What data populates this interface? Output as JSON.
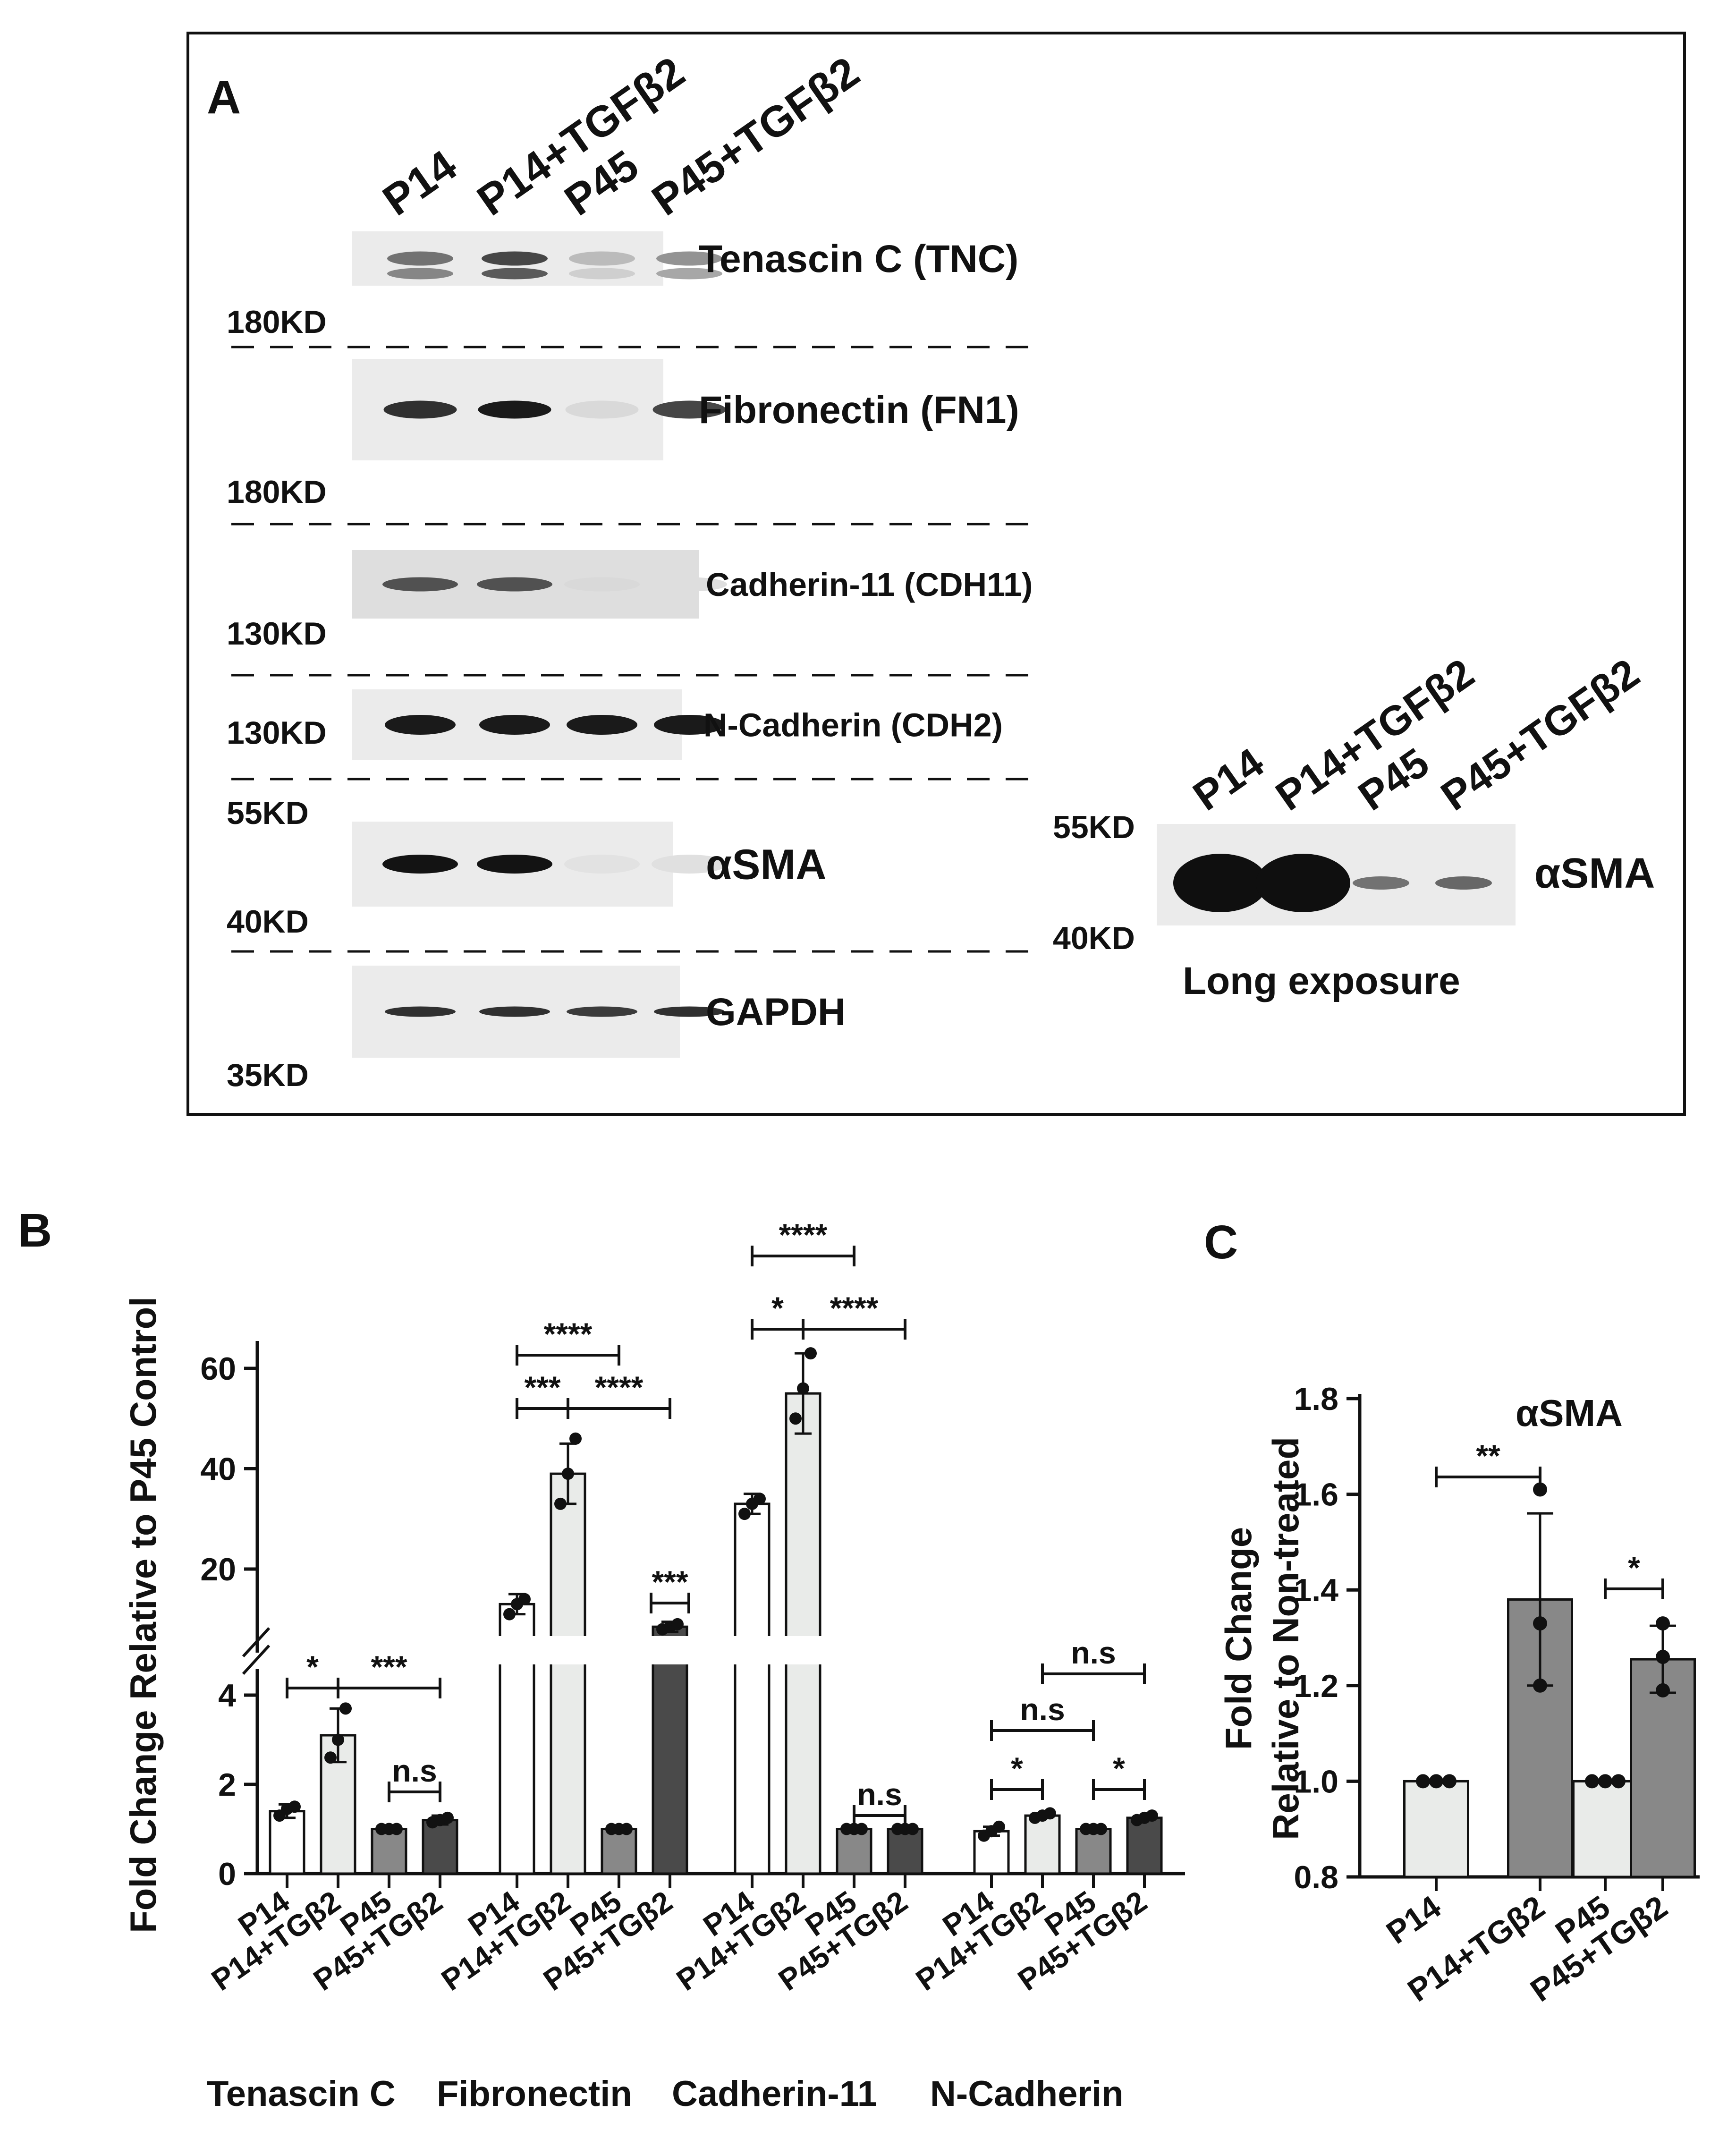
{
  "panel_a": {
    "panel_label": "A",
    "lane_labels": [
      "P14",
      "P14+TGFβ2",
      "P45",
      "P45+TGFβ2"
    ],
    "blots": [
      {
        "label": "Tenascin C (TNC)",
        "intensities": [
          0.55,
          0.75,
          0.22,
          0.4
        ]
      },
      {
        "label": "Fibronectin (FN1)",
        "intensities": [
          0.85,
          0.95,
          0.08,
          0.75
        ]
      },
      {
        "label": "Cadherin-11 (CDH11)",
        "intensities": [
          0.7,
          0.7,
          0.08,
          0.06
        ]
      },
      {
        "label": "N-Cadherin (CDH2)",
        "intensities": [
          0.95,
          0.95,
          0.95,
          0.95
        ]
      },
      {
        "label": "αSMA",
        "intensities": [
          0.98,
          0.98,
          0.04,
          0.05
        ]
      },
      {
        "label": "GAPDH",
        "intensities": [
          0.85,
          0.85,
          0.8,
          0.85
        ]
      }
    ],
    "mw_markers": [
      "180KD",
      "180KD",
      "130KD",
      "130KD",
      "55KD",
      "40KD",
      "35KD"
    ],
    "long_exposure": {
      "lane_labels": [
        "P14",
        "P14+TGFβ2",
        "P45",
        "P45+TGFβ2"
      ],
      "marker_top": "55KD",
      "marker_bottom": "40KD",
      "label": "αSMA",
      "caption": "Long exposure",
      "intensities": [
        1.0,
        1.0,
        0.55,
        0.6
      ]
    }
  },
  "chart_data": [
    {
      "panel_label": "B",
      "type": "bar",
      "ylabel": "Fold Change Relative to P45 Control",
      "y_axis": {
        "broken": true,
        "lower_range": [
          0,
          4.9
        ],
        "upper_range": [
          7,
          64
        ],
        "ticks": [
          0,
          2,
          4,
          20,
          40,
          60
        ]
      },
      "category_labels": [
        "P14",
        "P14+TGβ2",
        "P45",
        "P45+TGβ2"
      ],
      "bar_colors": [
        "#ffffff",
        "#e9ebe9",
        "#888888",
        "#4a4a4a"
      ],
      "groups": [
        {
          "name": "Tenascin C",
          "means": [
            1.4,
            3.1,
            1.0,
            1.2
          ],
          "errors": [
            0.15,
            0.6,
            0.0,
            0.1
          ],
          "points": [
            [
              1.3,
              1.45,
              1.5
            ],
            [
              2.6,
              3.0,
              3.7
            ],
            [
              1.0,
              1.0,
              1.0
            ],
            [
              1.15,
              1.2,
              1.25
            ]
          ],
          "comparisons": [
            {
              "from": 0,
              "to": 1,
              "label": "*"
            },
            {
              "from": 1,
              "to": 3,
              "label": "***"
            },
            {
              "from": 2,
              "to": 3,
              "label": "n.s"
            }
          ]
        },
        {
          "name": "Fibronectin",
          "means": [
            13,
            39,
            1.0,
            8.5
          ],
          "errors": [
            2,
            6,
            0.0,
            1
          ],
          "points": [
            [
              11,
              13,
              14
            ],
            [
              33,
              39,
              46
            ],
            [
              1.0,
              1.0,
              1.0
            ],
            [
              8,
              8.5,
              9
            ]
          ],
          "comparisons": [
            {
              "from": 0,
              "to": 1,
              "label": "***"
            },
            {
              "from": 0,
              "to": 2,
              "label": "****"
            },
            {
              "from": 1,
              "to": 3,
              "label": "****"
            },
            {
              "from": 3,
              "to": 3,
              "label": "***"
            }
          ]
        },
        {
          "name": "Cadherin-11",
          "means": [
            33,
            55,
            1.0,
            1.0
          ],
          "errors": [
            2,
            8,
            0.0,
            0.0
          ],
          "points": [
            [
              31,
              33,
              34
            ],
            [
              50,
              56,
              63
            ],
            [
              1.0,
              1.0,
              1.0
            ],
            [
              1.0,
              1.0,
              1.0
            ]
          ],
          "comparisons": [
            {
              "from": 0,
              "to": 1,
              "label": "*"
            },
            {
              "from": 0,
              "to": 2,
              "label": "****"
            },
            {
              "from": 1,
              "to": 3,
              "label": "****"
            },
            {
              "from": 2,
              "to": 3,
              "label": "n.s"
            }
          ]
        },
        {
          "name": "N-Cadherin",
          "means": [
            0.95,
            1.3,
            1.0,
            1.25
          ],
          "errors": [
            0.1,
            0.05,
            0.0,
            0.05
          ],
          "points": [
            [
              0.85,
              0.95,
              1.05
            ],
            [
              1.25,
              1.3,
              1.35
            ],
            [
              1.0,
              1.0,
              1.0
            ],
            [
              1.2,
              1.25,
              1.3
            ]
          ],
          "comparisons": [
            {
              "from": 0,
              "to": 1,
              "label": "*"
            },
            {
              "from": 0,
              "to": 2,
              "label": "n.s"
            },
            {
              "from": 1,
              "to": 3,
              "label": "n.s"
            },
            {
              "from": 2,
              "to": 3,
              "label": "*"
            }
          ]
        }
      ]
    },
    {
      "panel_label": "C",
      "type": "bar",
      "title": "αSMA",
      "ylabel_lines": [
        "Fold Change",
        "Relative to Non-treated"
      ],
      "ylim": [
        0.8,
        1.8
      ],
      "ticks": [
        0.8,
        1.0,
        1.2,
        1.4,
        1.6,
        1.8
      ],
      "tick_labels": [
        "0.8",
        "1.0",
        "1.2",
        "1.4",
        "1.6",
        "1.8"
      ],
      "categories": [
        "P14",
        "P14+TGβ2",
        "P45",
        "P45+TGβ2"
      ],
      "bar_colors": [
        "#e9ebe9",
        "#888888",
        "#e9ebe9",
        "#888888"
      ],
      "values": [
        1.0,
        1.38,
        1.0,
        1.255
      ],
      "errors": [
        0.0,
        0.18,
        0.0,
        0.07
      ],
      "points": [
        [
          1.0,
          1.0,
          1.0
        ],
        [
          1.2,
          1.33,
          1.61
        ],
        [
          1.0,
          1.0,
          1.0
        ],
        [
          1.19,
          1.26,
          1.33
        ]
      ],
      "comparisons": [
        {
          "from": 0,
          "to": 1,
          "label": "**"
        },
        {
          "from": 2,
          "to": 3,
          "label": "*"
        }
      ]
    }
  ]
}
